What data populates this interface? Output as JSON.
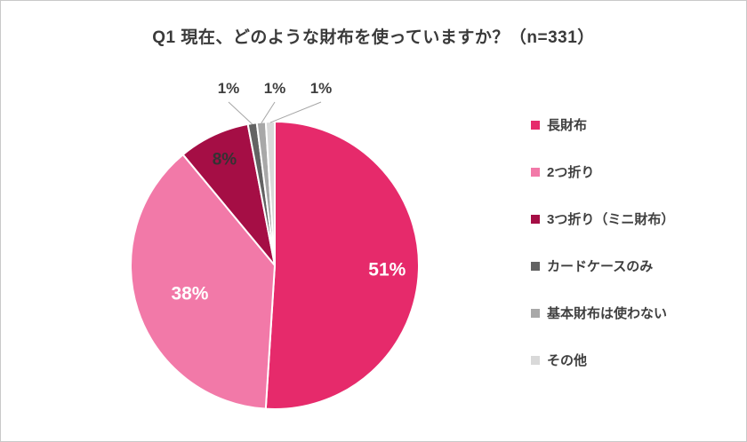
{
  "title": "Q1 現在、どのような財布を使っていますか？（n=331）",
  "chart_data": {
    "type": "pie",
    "title": "Q1 現在、どのような財布を使っていますか？（n=331）",
    "sample_size": "n=331",
    "categories": [
      "長財布",
      "2つ折り",
      "3つ折り（ミニ財布）",
      "カードケースのみ",
      "基本財布は使わない",
      "その他"
    ],
    "values": [
      51,
      38,
      8,
      1,
      1,
      1
    ],
    "unit": "%",
    "slice_labels": [
      "51%",
      "38%",
      "8%",
      "1%",
      "1%",
      "1%"
    ],
    "colors": [
      "#e62a6b",
      "#f279a8",
      "#a50e45",
      "#636363",
      "#a8a8a8",
      "#d9d9d9"
    ],
    "label_text_colors": [
      "#ffffff",
      "#ffffff",
      "#333333",
      "#3f3f3f",
      "#3f3f3f",
      "#3f3f3f"
    ],
    "start_angle": "top",
    "direction": "clockwise",
    "legend_position": "right",
    "grid": false,
    "layout": {
      "label_radius_frac": [
        0.78,
        0.62,
        0.82,
        0,
        0,
        0
      ],
      "label_font_sizes": [
        21,
        21,
        19,
        17,
        17,
        17
      ],
      "leader_line_color": "#a6a6a6"
    }
  }
}
